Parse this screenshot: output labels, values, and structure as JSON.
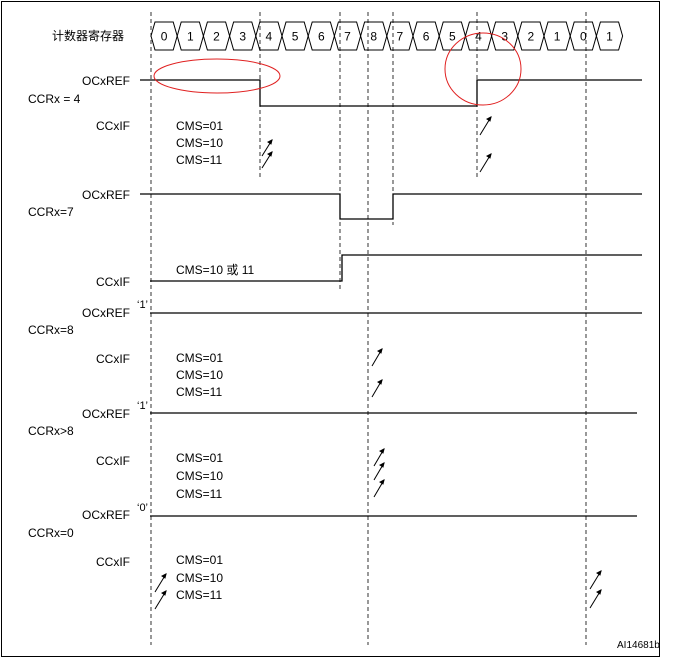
{
  "header": {
    "counter_label": "计数器寄存器",
    "counter_values": [
      "0",
      "1",
      "2",
      "3",
      "4",
      "5",
      "6",
      "7",
      "8",
      "7",
      "6",
      "5",
      "4",
      "3",
      "2",
      "1",
      "0",
      "1"
    ]
  },
  "sections": [
    {
      "id": "ccr4",
      "ocxref_label": "OCxREF",
      "ccr_label": "CCRx = 4",
      "ccxif_label": "CCxIF",
      "cms_lines": [
        "CMS=01",
        "CMS=10",
        "CMS=11"
      ]
    },
    {
      "id": "ccr7",
      "ocxref_label": "OCxREF",
      "ccr_label": "CCRx=7",
      "ccxif_label": "CCxIF",
      "cms_lines": [
        "CMS=10 或 11"
      ]
    },
    {
      "id": "ccr8",
      "ocxref_label": "OCxREF",
      "level_mark": "‘1’",
      "ccr_label": "CCRx=8",
      "ccxif_label": "CCxIF",
      "cms_lines": [
        "CMS=01",
        "CMS=10",
        "CMS=11"
      ]
    },
    {
      "id": "ccrgt8",
      "ocxref_label": "OCxREF",
      "level_mark": "‘1’",
      "ccr_label": "CCRx>8",
      "ccxif_label": "CCxIF",
      "cms_lines": [
        "CMS=01",
        "CMS=10",
        "CMS=11"
      ]
    },
    {
      "id": "ccr0",
      "ocxref_label": "OCxREF",
      "level_mark": "‘0’",
      "ccr_label": "CCRx=0",
      "ccxif_label": "CCxIF",
      "cms_lines": [
        "CMS=01",
        "CMS=10",
        "CMS=11"
      ]
    }
  ],
  "figure_id": "AI14681b",
  "colors": {
    "line": "#000000",
    "highlight": "#e02020"
  }
}
